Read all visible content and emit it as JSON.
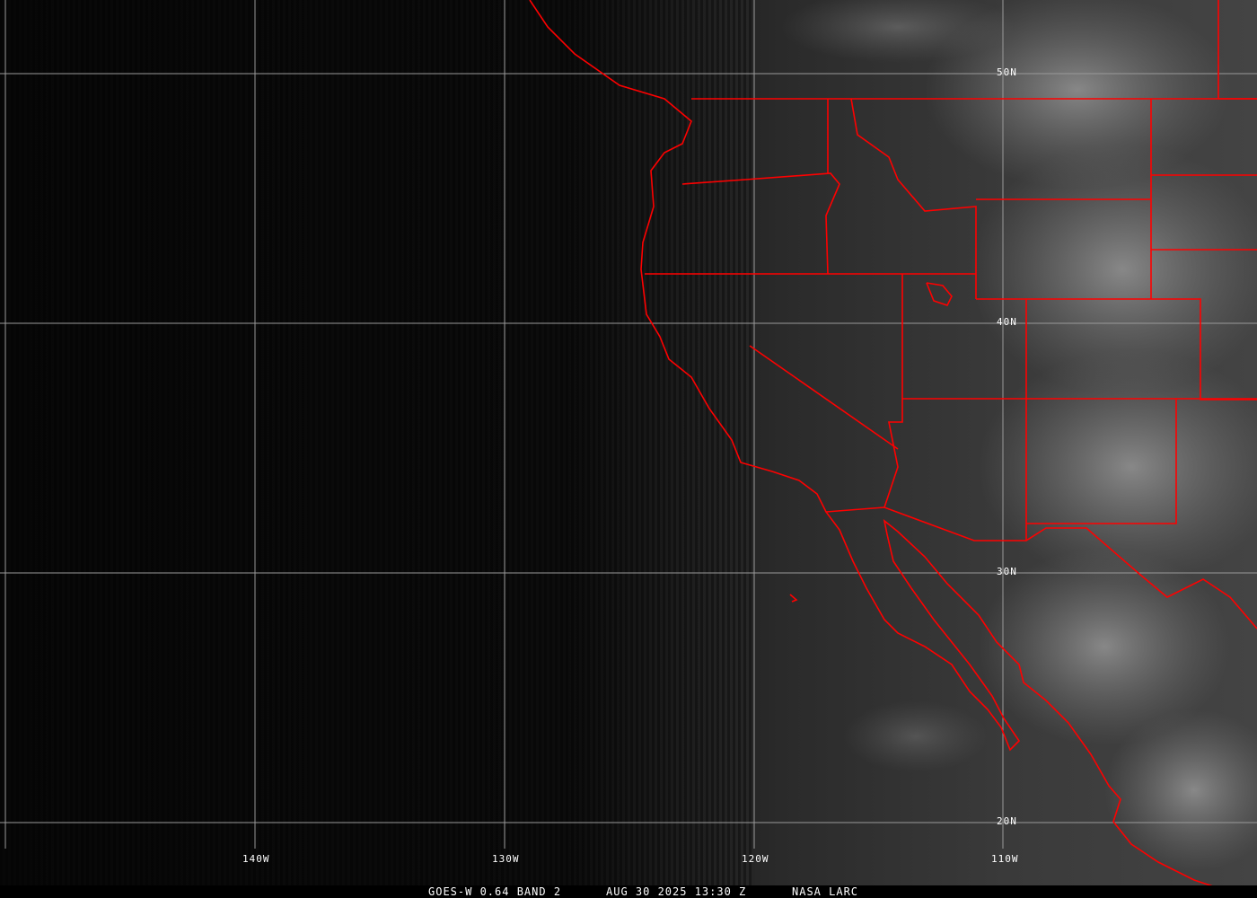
{
  "image": {
    "product": "GOES-W 0.64 BAND 2",
    "datetime": "AUG 30 2025 13:30 Z",
    "credit": "NASA LARC"
  },
  "grid": {
    "longitude_labels": [
      "140W",
      "130W",
      "120W",
      "110W"
    ],
    "latitude_labels": [
      "50N",
      "40N",
      "30N",
      "20N"
    ],
    "grid_color": "#9a9a9a",
    "border_color": "#ff0000"
  }
}
